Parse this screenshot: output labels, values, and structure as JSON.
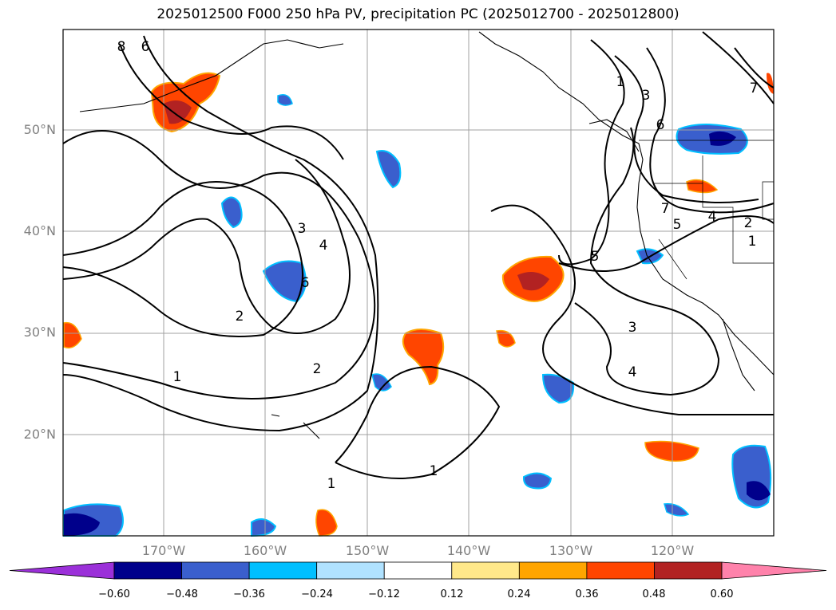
{
  "title": "2025012500 F000 250 hPa PV, precipitation PC (2025012700 - 2025012800)",
  "map": {
    "lat_ticks": [
      {
        "value": 20,
        "label": "20°N"
      },
      {
        "value": 30,
        "label": "30°N"
      },
      {
        "value": 40,
        "label": "40°N"
      },
      {
        "value": 50,
        "label": "50°N"
      }
    ],
    "lon_ticks": [
      {
        "value": -170,
        "label": "170°W"
      },
      {
        "value": -160,
        "label": "160°W"
      },
      {
        "value": -150,
        "label": "150°W"
      },
      {
        "value": -140,
        "label": "140°W"
      },
      {
        "value": -130,
        "label": "130°W"
      },
      {
        "value": -120,
        "label": "120°W"
      }
    ],
    "contour_labels": [
      "1",
      "1",
      "1",
      "1",
      "1",
      "2",
      "2",
      "2",
      "3",
      "3",
      "3",
      "4",
      "4",
      "4",
      "5",
      "5",
      "6",
      "6",
      "6",
      "7",
      "7",
      "8"
    ]
  },
  "colorbar": {
    "colors": [
      "#9b30d9",
      "#00008b",
      "#3a5fcd",
      "#00bfff",
      "#b0e2ff",
      "#ffffff",
      "#ffe88a",
      "#ffa500",
      "#ff4500",
      "#b22222",
      "#ff82ab"
    ],
    "ticks": [
      "−0.60",
      "−0.48",
      "−0.36",
      "−0.24",
      "−0.12",
      "0.12",
      "0.24",
      "0.36",
      "0.48",
      "0.60"
    ]
  }
}
